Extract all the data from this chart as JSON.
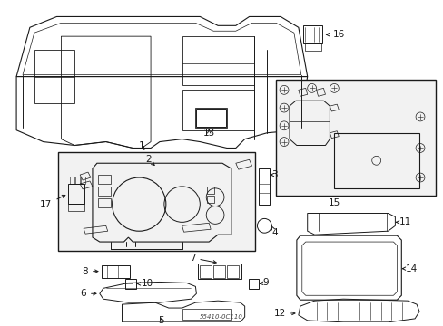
{
  "background_color": "#ffffff",
  "line_color": "#1a1a1a",
  "box_fill": "#f0f0f0",
  "part_number": "55410-0C110",
  "fig_width": 4.89,
  "fig_height": 3.6,
  "dpi": 100
}
